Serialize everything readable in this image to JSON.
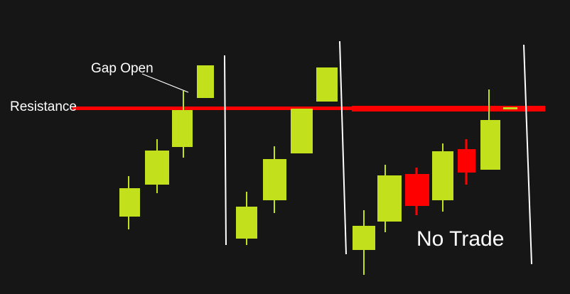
{
  "labels": {
    "gap_open": "Gap Open",
    "resistance": "Resistance",
    "no_trade": "No Trade"
  }
}
